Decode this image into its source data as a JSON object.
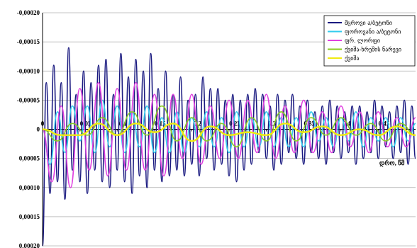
{
  "chart_data": {
    "type": "line",
    "title": "",
    "xlabel": "დრო, წმ",
    "ylabel": "",
    "xlim": [
      0,
      0.5
    ],
    "ylim": [
      0.0002,
      -0.0002
    ],
    "y_axis_inverted": true,
    "grid": "horizontal",
    "legend_position": "top-right",
    "x_tick_labels": [
      "0",
      "0,05",
      "0,1",
      "0,15",
      "0,2",
      "0,25",
      "0,3",
      "0,35",
      "0,4",
      "0,45"
    ],
    "x_tick_values": [
      0,
      0.05,
      0.1,
      0.15,
      0.2,
      0.25,
      0.3,
      0.35,
      0.4,
      0.45
    ],
    "y_tick_labels": [
      "-0,00020",
      "-0,00015",
      "-0,00010",
      "-0,00005",
      "0",
      "0,00005",
      "0,00010",
      "0,00015",
      "0,00020"
    ],
    "y_tick_values": [
      -0.0002,
      -0.00015,
      -0.0001,
      -5e-05,
      0,
      5e-05,
      0.0001,
      0.00015,
      0.0002
    ],
    "series": [
      {
        "name": "მცროვი ა/ბეტონი",
        "color": "#1a1a80",
        "x": [
          0,
          0.005,
          0.01,
          0.015,
          0.02,
          0.025,
          0.03,
          0.035,
          0.04,
          0.045,
          0.05,
          0.055,
          0.06,
          0.065,
          0.07,
          0.075,
          0.08,
          0.085,
          0.09,
          0.095,
          0.1,
          0.105,
          0.11,
          0.115,
          0.12,
          0.125,
          0.13,
          0.135,
          0.14,
          0.145,
          0.15,
          0.155,
          0.16,
          0.165,
          0.17,
          0.175,
          0.18,
          0.185,
          0.19,
          0.195,
          0.2,
          0.205,
          0.21,
          0.215,
          0.22,
          0.225,
          0.23,
          0.235,
          0.24,
          0.245,
          0.25,
          0.255,
          0.26,
          0.265,
          0.27,
          0.275,
          0.28,
          0.285,
          0.29,
          0.295,
          0.3,
          0.305,
          0.31,
          0.315,
          0.32,
          0.325,
          0.33,
          0.335,
          0.34,
          0.345,
          0.35,
          0.355,
          0.36,
          0.365,
          0.37,
          0.375,
          0.38,
          0.385,
          0.39,
          0.395,
          0.4,
          0.405,
          0.41,
          0.415,
          0.42,
          0.425,
          0.43,
          0.435,
          0.44,
          0.445,
          0.45,
          0.455,
          0.46,
          0.465,
          0.47,
          0.475,
          0.48,
          0.485,
          0.49,
          0.495,
          0.5
        ],
        "y": [
          0.0002,
          -8e-05,
          0.00011,
          -0.00011,
          9e-05,
          -8e-05,
          0.00012,
          -0.00014,
          7e-05,
          -6e-05,
          9e-05,
          -0.0001,
          0.00011,
          -8e-05,
          7e-05,
          -0.00011,
          9e-05,
          -0.00012,
          0.0001,
          -6e-05,
          7e-05,
          -0.00013,
          9e-05,
          -9e-05,
          0.00011,
          -0.00012,
          8e-05,
          -0.0001,
          0.0001,
          -0.00013,
          7e-05,
          -7e-05,
          9e-05,
          -0.0001,
          8e-05,
          -6e-05,
          7e-05,
          -9e-05,
          8e-05,
          -5e-05,
          6e-05,
          -6e-05,
          8e-05,
          -9e-05,
          5e-05,
          -7e-05,
          7e-05,
          -7e-05,
          6e-05,
          -5e-05,
          8e-05,
          -6e-05,
          9e-05,
          -5e-05,
          7e-05,
          -6e-05,
          6e-05,
          -7e-05,
          4e-05,
          -6e-05,
          5e-05,
          -4e-05,
          7e-05,
          -6e-05,
          6e-05,
          -5e-05,
          4e-05,
          -6e-05,
          5e-05,
          -4e-05,
          6e-05,
          -5e-05,
          4e-05,
          -3e-05,
          5e-05,
          -4e-05,
          6e-05,
          -5e-05,
          4e-05,
          -4e-05,
          5e-05,
          -3e-05,
          4e-05,
          -4e-05,
          6e-05,
          -4e-05,
          5e-05,
          -3e-05,
          4e-05,
          -5e-05,
          5e-05,
          -4e-05,
          3e-05,
          -3e-05,
          5e-05,
          -4e-05,
          4e-05,
          -5e-05,
          6e-05,
          -4e-05,
          5e-05
        ]
      },
      {
        "name": "ფოროვანი ა/ბეტონი",
        "color": "#33ccee",
        "x": [
          0,
          0.01,
          0.02,
          0.03,
          0.04,
          0.05,
          0.06,
          0.07,
          0.08,
          0.09,
          0.1,
          0.11,
          0.12,
          0.13,
          0.14,
          0.15,
          0.16,
          0.17,
          0.18,
          0.19,
          0.2,
          0.21,
          0.22,
          0.23,
          0.24,
          0.25,
          0.26,
          0.27,
          0.28,
          0.29,
          0.3,
          0.31,
          0.32,
          0.33,
          0.34,
          0.35,
          0.36,
          0.37,
          0.38,
          0.39,
          0.4,
          0.41,
          0.42,
          0.43,
          0.44,
          0.45,
          0.46,
          0.47,
          0.48,
          0.49,
          0.5
        ],
        "y": [
          0,
          6e-05,
          -3e-05,
          4e-05,
          -4e-05,
          2e-05,
          -4e-05,
          4e-05,
          -5e-05,
          3e-05,
          -4e-05,
          4e-05,
          -3e-05,
          3e-05,
          -4e-05,
          4e-05,
          -2e-05,
          4e-05,
          -3e-05,
          4e-05,
          -2e-05,
          3e-05,
          -3e-05,
          3e-05,
          -2e-05,
          4e-05,
          -3e-05,
          3e-05,
          -2e-05,
          3e-05,
          -3e-05,
          3e-05,
          -2e-05,
          3e-05,
          -2e-05,
          3e-05,
          -3e-05,
          2e-05,
          -2e-05,
          3e-05,
          -2e-05,
          2e-05,
          -3e-05,
          3e-05,
          -2e-05,
          2e-05,
          -2e-05,
          3e-05,
          -2e-05,
          2e-05,
          -1e-05
        ]
      },
      {
        "name": "ფრ. ლორფი",
        "color": "#e040e0",
        "x": [
          0,
          0.0125,
          0.025,
          0.0375,
          0.05,
          0.0625,
          0.075,
          0.0875,
          0.1,
          0.1125,
          0.125,
          0.1375,
          0.15,
          0.1625,
          0.175,
          0.1875,
          0.2,
          0.2125,
          0.225,
          0.2375,
          0.25,
          0.2625,
          0.275,
          0.2875,
          0.3,
          0.3125,
          0.325,
          0.3375,
          0.35,
          0.3625,
          0.375,
          0.3875,
          0.4,
          0.4125,
          0.425,
          0.4375,
          0.45,
          0.4625,
          0.475,
          0.4875,
          0.5
        ],
        "y": [
          0,
          9e-05,
          -4e-05,
          0.0001,
          -7e-05,
          7e-05,
          -8e-05,
          8e-05,
          -7e-05,
          7e-05,
          -8e-05,
          7e-05,
          -6e-05,
          8e-05,
          -6e-05,
          5e-05,
          -6e-05,
          6e-05,
          -4e-05,
          5e-05,
          -5e-05,
          5e-05,
          -5e-05,
          4e-05,
          -6e-05,
          5e-05,
          -4e-05,
          4e-05,
          -5e-05,
          4e-05,
          -3e-05,
          4e-05,
          -4e-05,
          3e-05,
          -3e-05,
          4e-05,
          -3e-05,
          3e-05,
          -2e-05,
          3e-05,
          -2e-05
        ]
      },
      {
        "name": "ქვიშა-ხრეშის ნარევი",
        "color": "#88cc22",
        "x": [
          0,
          0.02,
          0.04,
          0.06,
          0.08,
          0.1,
          0.12,
          0.14,
          0.16,
          0.18,
          0.2,
          0.22,
          0.24,
          0.26,
          0.28,
          0.3,
          0.32,
          0.34,
          0.36,
          0.38,
          0.4,
          0.42,
          0.44,
          0.46,
          0.48,
          0.5
        ],
        "y": [
          0,
          2e-05,
          -1e-05,
          1e-05,
          -2e-05,
          1e-05,
          -3e-05,
          1e-05,
          -4e-05,
          2e-05,
          -2e-05,
          2e-05,
          -1e-05,
          3e-05,
          -2e-05,
          2e-05,
          -3e-05,
          2e-05,
          -2e-05,
          1e-05,
          -2e-05,
          1e-05,
          -1e-05,
          2e-05,
          -1e-05,
          1e-05
        ]
      },
      {
        "name": "ქვიშა",
        "color": "#f0ea10",
        "x": [
          0,
          0.025,
          0.05,
          0.075,
          0.1,
          0.125,
          0.15,
          0.175,
          0.2,
          0.225,
          0.25,
          0.275,
          0.3,
          0.325,
          0.35,
          0.375,
          0.4,
          0.425,
          0.45,
          0.475,
          0.5
        ],
        "y": [
          0,
          1e-05,
          1e-05,
          -1e-05,
          1e-05,
          -1e-05,
          5e-06,
          -1e-05,
          2e-05,
          -5e-06,
          1e-05,
          5e-06,
          1e-05,
          -1e-05,
          5e-06,
          -5e-06,
          1e-05,
          0,
          1e-05,
          -5e-06,
          1e-05
        ]
      }
    ]
  }
}
